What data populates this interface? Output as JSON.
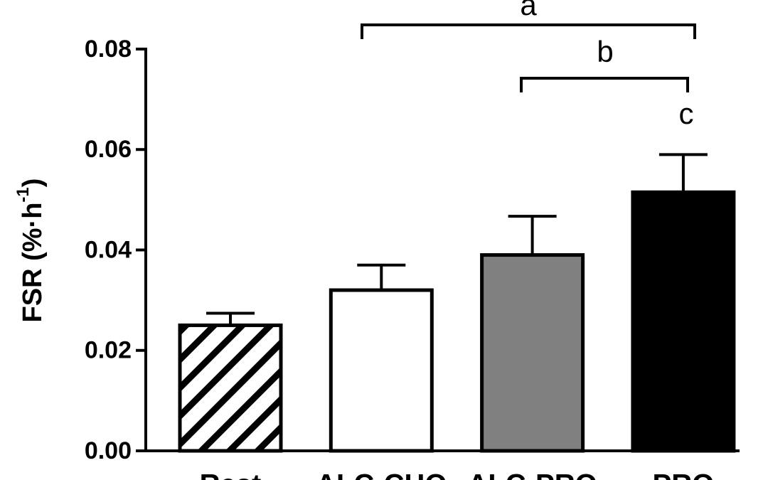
{
  "chart_data": {
    "type": "bar",
    "y_label": "FSR (%·h",
    "y_label_sup": "-1",
    "y_label_end": ")",
    "categories": [
      "Rest",
      "ALC-CHO",
      "ALC-PRO",
      "PRO"
    ],
    "values": [
      0.025,
      0.032,
      0.039,
      0.0515
    ],
    "errors": [
      0.0024,
      0.005,
      0.0077,
      0.0075
    ],
    "colors": [
      "#ffffff",
      "#ffffff",
      "#808080",
      "#000000"
    ],
    "hatch": [
      true,
      false,
      false,
      false
    ],
    "ylim": [
      0,
      0.08
    ],
    "yticks": [
      {
        "value": 0,
        "label": "0.00"
      },
      {
        "value": 0.02,
        "label": "0.02"
      },
      {
        "value": 0.04,
        "label": "0.04"
      },
      {
        "value": 0.06,
        "label": "0.06"
      },
      {
        "value": 0.08,
        "label": "0.08"
      }
    ],
    "annotations": [
      "a",
      "b",
      "c"
    ]
  }
}
